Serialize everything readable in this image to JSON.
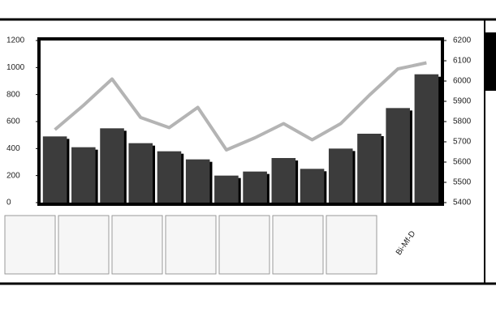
{
  "chart_data": {
    "type": "bar-line",
    "categories": [
      null,
      null,
      null,
      null,
      null,
      null,
      null,
      null,
      null,
      null,
      null,
      null,
      null,
      null
    ],
    "series": [
      {
        "type": "bar",
        "color": "#3c3c3c",
        "values": [
          490,
          410,
          550,
          440,
          380,
          320,
          200,
          230,
          330,
          250,
          400,
          510,
          700,
          950
        ]
      },
      {
        "type": "line",
        "axis": "y2",
        "color": "#b4b4b4",
        "values": [
          5760,
          5880,
          6010,
          5820,
          5770,
          5870,
          5660,
          5720,
          5790,
          5710,
          5790,
          5930,
          6060,
          6090
        ]
      }
    ],
    "ylim": [
      0,
      1200
    ],
    "yticks": [
      0,
      200,
      400,
      600,
      800,
      1000,
      1200
    ],
    "y2lim": [
      5400,
      6200
    ],
    "y2ticks": [
      5400,
      5500,
      5600,
      5700,
      5800,
      5900,
      6000,
      6100,
      6200
    ],
    "annotation": "Bi-Mf-D"
  }
}
